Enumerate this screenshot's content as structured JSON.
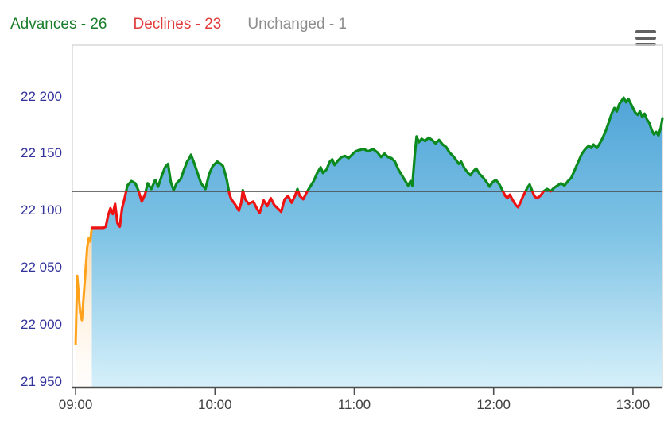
{
  "legend": {
    "items": [
      {
        "key": "advances",
        "label": "Advances - 26",
        "color": "#197d2b"
      },
      {
        "key": "declines",
        "label": "Declines - 23",
        "color": "#e23b3b"
      },
      {
        "key": "unchanged",
        "label": "Unchanged - 1",
        "color": "#8d8d8d"
      }
    ]
  },
  "icons": {
    "menu": "hamburger-icon"
  },
  "colors": {
    "line_up": "#0c8a1e",
    "line_down": "#ee1313",
    "pre_open_line": "#ffa21a",
    "prev_close_line": "#454545",
    "area_top": "#3e99d3",
    "area_mid": "#7fc3e5",
    "area_bottom": "#d6f0fa",
    "pre_open_area_top": "rgba(255,170,60,0.50)",
    "pre_open_area_bottom": "rgba(255,240,225,0.10)",
    "plot_border": "#d8d8d8",
    "axis_line": "#4d4d4d",
    "y_label": "#32329b",
    "x_label": "#404040"
  },
  "chart_data": {
    "type": "area",
    "title": "",
    "xlabel": "",
    "ylabel": "",
    "x_unit": "minutes from 09:00",
    "prev_close": 22117,
    "xlim": [
      -1.4,
      252.7
    ],
    "ylim": [
      21945,
      22245
    ],
    "grid": false,
    "legend_position": "top-left",
    "x_ticks": [
      {
        "t": 0,
        "label": "09:00"
      },
      {
        "t": 60,
        "label": "10:00"
      },
      {
        "t": 120,
        "label": "11:00"
      },
      {
        "t": 180,
        "label": "12:00"
      },
      {
        "t": 240,
        "label": "13:00"
      }
    ],
    "y_ticks": [
      {
        "v": 22200,
        "label": "22 200"
      },
      {
        "v": 22150,
        "label": "22 150"
      },
      {
        "v": 22100,
        "label": "22 100"
      },
      {
        "v": 22050,
        "label": "22 050"
      },
      {
        "v": 22000,
        "label": "22 000"
      },
      {
        "v": 21950,
        "label": "21 950"
      }
    ],
    "series": [
      {
        "name": "pre-open",
        "color": "#ffa21a",
        "points": [
          [
            0,
            21983
          ],
          [
            0.7,
            22043
          ],
          [
            2,
            22010
          ],
          [
            2.7,
            22004
          ],
          [
            4,
            22040
          ],
          [
            5,
            22068
          ],
          [
            5.7,
            22076
          ],
          [
            6.3,
            22073
          ],
          [
            7,
            22085
          ]
        ]
      },
      {
        "name": "index",
        "color_above": "#0c8a1e",
        "color_below": "#ee1313",
        "threshold": 22117,
        "points": [
          [
            7,
            22085
          ],
          [
            8,
            22085
          ],
          [
            9,
            22085
          ],
          [
            10,
            22085
          ],
          [
            11,
            22085
          ],
          [
            12,
            22085
          ],
          [
            13,
            22086
          ],
          [
            14,
            22096
          ],
          [
            15,
            22102
          ],
          [
            16,
            22097
          ],
          [
            17,
            22106
          ],
          [
            18,
            22089
          ],
          [
            19,
            22086
          ],
          [
            20,
            22102
          ],
          [
            21,
            22110
          ],
          [
            22.3,
            22122
          ],
          [
            24,
            22126
          ],
          [
            25.7,
            22124
          ],
          [
            27,
            22118
          ],
          [
            28.5,
            22108
          ],
          [
            30,
            22115
          ],
          [
            31,
            22124
          ],
          [
            32.6,
            22119
          ],
          [
            34.3,
            22127
          ],
          [
            35.5,
            22121
          ],
          [
            37,
            22130
          ],
          [
            38.5,
            22138
          ],
          [
            39.8,
            22141
          ],
          [
            41,
            22125
          ],
          [
            42.2,
            22118
          ],
          [
            43.5,
            22124
          ],
          [
            45.3,
            22128
          ],
          [
            46.5,
            22135
          ],
          [
            48,
            22143
          ],
          [
            49,
            22146
          ],
          [
            49.7,
            22149
          ],
          [
            51,
            22142
          ],
          [
            52.5,
            22133
          ],
          [
            54,
            22124
          ],
          [
            55.9,
            22119
          ],
          [
            57.5,
            22132
          ],
          [
            59,
            22139
          ],
          [
            61,
            22143
          ],
          [
            62.5,
            22141
          ],
          [
            63.5,
            22139
          ],
          [
            65,
            22128
          ],
          [
            66.2,
            22115
          ],
          [
            67,
            22110
          ],
          [
            68.5,
            22106
          ],
          [
            70.3,
            22100
          ],
          [
            71.3,
            22107
          ],
          [
            72,
            22118
          ],
          [
            73,
            22110
          ],
          [
            74.5,
            22106
          ],
          [
            76.5,
            22108
          ],
          [
            78,
            22102
          ],
          [
            79.2,
            22098
          ],
          [
            81,
            22109
          ],
          [
            82.5,
            22104
          ],
          [
            84,
            22111
          ],
          [
            85.5,
            22105
          ],
          [
            87,
            22102
          ],
          [
            88.5,
            22099
          ],
          [
            90,
            22110
          ],
          [
            91.5,
            22113
          ],
          [
            93,
            22107
          ],
          [
            94.5,
            22113
          ],
          [
            95.5,
            22119
          ],
          [
            96.5,
            22113
          ],
          [
            98,
            22110
          ],
          [
            99.5,
            22116
          ],
          [
            101,
            22121
          ],
          [
            102.5,
            22126
          ],
          [
            104,
            22133
          ],
          [
            105.5,
            22138
          ],
          [
            106.5,
            22133
          ],
          [
            108,
            22136
          ],
          [
            109.5,
            22143
          ],
          [
            110.5,
            22145
          ],
          [
            111.5,
            22140
          ],
          [
            113,
            22144
          ],
          [
            114.5,
            22147
          ],
          [
            116,
            22148
          ],
          [
            117.5,
            22146
          ],
          [
            119,
            22149
          ],
          [
            120.5,
            22152
          ],
          [
            122,
            22153
          ],
          [
            124,
            22154
          ],
          [
            126,
            22152
          ],
          [
            128,
            22154
          ],
          [
            130,
            22151
          ],
          [
            131.5,
            22147
          ],
          [
            133,
            22150
          ],
          [
            134.5,
            22147
          ],
          [
            136,
            22146
          ],
          [
            137.5,
            22143
          ],
          [
            139,
            22136
          ],
          [
            140.5,
            22131
          ],
          [
            142,
            22126
          ],
          [
            143.2,
            22122
          ],
          [
            144.2,
            22126
          ],
          [
            145,
            22122
          ],
          [
            146,
            22148
          ],
          [
            146.8,
            22165
          ],
          [
            147.8,
            22160
          ],
          [
            149,
            22163
          ],
          [
            150.5,
            22161
          ],
          [
            152,
            22164
          ],
          [
            153.5,
            22162
          ],
          [
            155,
            22159
          ],
          [
            156.5,
            22162
          ],
          [
            158,
            22158
          ],
          [
            159.5,
            22156
          ],
          [
            161,
            22151
          ],
          [
            162.5,
            22148
          ],
          [
            164,
            22144
          ],
          [
            165,
            22141
          ],
          [
            166,
            22143
          ],
          [
            167.5,
            22137
          ],
          [
            169,
            22133
          ],
          [
            170,
            22131
          ],
          [
            171,
            22134
          ],
          [
            172.5,
            22137
          ],
          [
            174,
            22132
          ],
          [
            175.5,
            22129
          ],
          [
            177,
            22125
          ],
          [
            178.3,
            22121
          ],
          [
            179.5,
            22125
          ],
          [
            181,
            22127
          ],
          [
            182.5,
            22123
          ],
          [
            184,
            22117
          ],
          [
            185,
            22113
          ],
          [
            186,
            22111
          ],
          [
            187,
            22114
          ],
          [
            188,
            22110
          ],
          [
            189.5,
            22105
          ],
          [
            190.5,
            22103
          ],
          [
            191.5,
            22107
          ],
          [
            192.5,
            22112
          ],
          [
            193.5,
            22116
          ],
          [
            194.5,
            22120
          ],
          [
            195.5,
            22123
          ],
          [
            196.5,
            22118
          ],
          [
            197.5,
            22113
          ],
          [
            198.5,
            22111
          ],
          [
            199.5,
            22112
          ],
          [
            200.5,
            22114
          ],
          [
            201.5,
            22117
          ],
          [
            203,
            22119
          ],
          [
            204.5,
            22117
          ],
          [
            206,
            22120
          ],
          [
            207.5,
            22122
          ],
          [
            209,
            22124
          ],
          [
            210.5,
            22122
          ],
          [
            212,
            22126
          ],
          [
            213.5,
            22129
          ],
          [
            215,
            22136
          ],
          [
            216.5,
            22143
          ],
          [
            218,
            22150
          ],
          [
            219.5,
            22154
          ],
          [
            221,
            22157
          ],
          [
            222,
            22155
          ],
          [
            223,
            22158
          ],
          [
            224.5,
            22155
          ],
          [
            226,
            22160
          ],
          [
            227,
            22164
          ],
          [
            228.5,
            22171
          ],
          [
            230,
            22180
          ],
          [
            231,
            22186
          ],
          [
            232,
            22190
          ],
          [
            233,
            22187
          ],
          [
            234,
            22193
          ],
          [
            235,
            22196
          ],
          [
            236,
            22199
          ],
          [
            237,
            22195
          ],
          [
            238,
            22198
          ],
          [
            239,
            22194
          ],
          [
            240,
            22190
          ],
          [
            241,
            22186
          ],
          [
            242,
            22184
          ],
          [
            243,
            22187
          ],
          [
            244,
            22182
          ],
          [
            245,
            22185
          ],
          [
            246,
            22180
          ],
          [
            247,
            22177
          ],
          [
            248,
            22171
          ],
          [
            249,
            22167
          ],
          [
            250,
            22169
          ],
          [
            251,
            22166
          ],
          [
            252,
            22173
          ],
          [
            252.7,
            22181
          ]
        ]
      }
    ]
  }
}
